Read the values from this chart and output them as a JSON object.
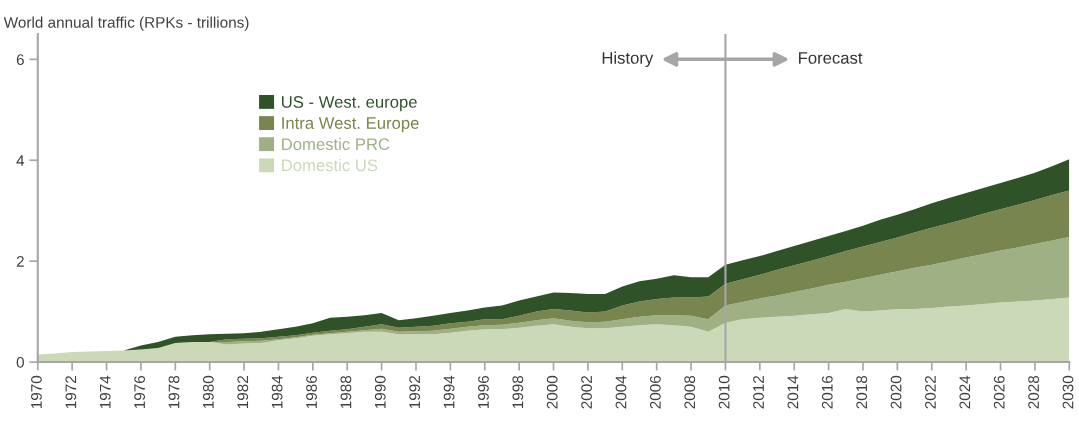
{
  "chart_data": {
    "type": "area",
    "stacked": true,
    "ylabel": "World annual traffic (RPKs - trillions)",
    "x": [
      1970,
      1971,
      1972,
      1973,
      1974,
      1975,
      1976,
      1977,
      1978,
      1979,
      1980,
      1981,
      1982,
      1983,
      1984,
      1985,
      1986,
      1987,
      1988,
      1989,
      1990,
      1991,
      1992,
      1993,
      1994,
      1995,
      1996,
      1997,
      1998,
      1999,
      2000,
      2001,
      2002,
      2003,
      2004,
      2005,
      2006,
      2007,
      2008,
      2009,
      2010,
      2011,
      2012,
      2013,
      2014,
      2015,
      2016,
      2017,
      2018,
      2019,
      2020,
      2021,
      2022,
      2023,
      2024,
      2025,
      2026,
      2027,
      2028,
      2029,
      2030
    ],
    "series": [
      {
        "name": "Domestic US",
        "color": "#cbd9b8",
        "values": [
          0.15,
          0.17,
          0.2,
          0.21,
          0.22,
          0.23,
          0.25,
          0.28,
          0.38,
          0.4,
          0.4,
          0.35,
          0.37,
          0.38,
          0.43,
          0.47,
          0.52,
          0.55,
          0.57,
          0.6,
          0.6,
          0.55,
          0.55,
          0.55,
          0.58,
          0.62,
          0.65,
          0.65,
          0.68,
          0.72,
          0.75,
          0.7,
          0.67,
          0.67,
          0.7,
          0.73,
          0.75,
          0.73,
          0.7,
          0.6,
          0.78,
          0.85,
          0.88,
          0.9,
          0.92,
          0.95,
          0.97,
          1.05,
          1.0,
          1.02,
          1.05,
          1.05,
          1.07,
          1.1,
          1.12,
          1.15,
          1.18,
          1.2,
          1.22,
          1.25,
          1.28
        ]
      },
      {
        "name": "Domestic PRC",
        "color": "#9fb084",
        "values": [
          0,
          0,
          0,
          0,
          0,
          0,
          0,
          0,
          0,
          0,
          0,
          0.05,
          0.04,
          0.04,
          0.02,
          0.02,
          0.02,
          0.02,
          0.03,
          0.03,
          0.06,
          0.05,
          0.06,
          0.07,
          0.08,
          0.08,
          0.08,
          0.09,
          0.1,
          0.11,
          0.12,
          0.12,
          0.12,
          0.13,
          0.15,
          0.17,
          0.18,
          0.2,
          0.22,
          0.25,
          0.34,
          0.34,
          0.38,
          0.42,
          0.47,
          0.51,
          0.56,
          0.54,
          0.66,
          0.71,
          0.75,
          0.82,
          0.86,
          0.9,
          0.95,
          0.99,
          1.03,
          1.07,
          1.12,
          1.16,
          1.2
        ]
      },
      {
        "name": "Intra West. Europe",
        "color": "#78854e",
        "values": [
          0,
          0,
          0,
          0,
          0,
          0,
          0,
          0,
          0,
          0,
          0,
          0.05,
          0.05,
          0.05,
          0.05,
          0.04,
          0.04,
          0.05,
          0.05,
          0.07,
          0.09,
          0.08,
          0.09,
          0.1,
          0.11,
          0.1,
          0.12,
          0.11,
          0.14,
          0.17,
          0.18,
          0.2,
          0.19,
          0.2,
          0.27,
          0.3,
          0.32,
          0.35,
          0.36,
          0.45,
          0.43,
          0.45,
          0.47,
          0.51,
          0.53,
          0.55,
          0.57,
          0.61,
          0.63,
          0.65,
          0.67,
          0.7,
          0.73,
          0.75,
          0.77,
          0.8,
          0.82,
          0.85,
          0.87,
          0.9,
          0.92
        ]
      },
      {
        "name": "US - West. europe",
        "color": "#2f5229",
        "values": [
          0,
          0,
          0,
          0,
          0,
          0,
          0.08,
          0.12,
          0.12,
          0.13,
          0.15,
          0.11,
          0.11,
          0.13,
          0.15,
          0.17,
          0.19,
          0.26,
          0.25,
          0.23,
          0.22,
          0.15,
          0.17,
          0.2,
          0.2,
          0.22,
          0.23,
          0.27,
          0.3,
          0.3,
          0.33,
          0.35,
          0.37,
          0.35,
          0.38,
          0.4,
          0.4,
          0.44,
          0.4,
          0.38,
          0.38,
          0.38,
          0.37,
          0.37,
          0.38,
          0.39,
          0.4,
          0.4,
          0.41,
          0.44,
          0.45,
          0.46,
          0.49,
          0.5,
          0.51,
          0.51,
          0.52,
          0.53,
          0.54,
          0.57,
          0.62
        ]
      }
    ],
    "xlim": [
      1970,
      2030
    ],
    "xticks": [
      1970,
      1972,
      1974,
      1976,
      1978,
      1980,
      1982,
      1984,
      1986,
      1988,
      1990,
      1992,
      1994,
      1996,
      1998,
      2000,
      2002,
      2004,
      2006,
      2008,
      2010,
      2012,
      2014,
      2016,
      2018,
      2020,
      2022,
      2024,
      2026,
      2028,
      2030
    ],
    "ylim": [
      0,
      6.5
    ],
    "yticks": [
      0,
      2,
      4,
      6
    ],
    "ref_lines": [
      {
        "axis": "x",
        "value": 2010,
        "color": "#a6a6a6"
      }
    ],
    "annotations": [
      "History",
      "Forecast"
    ],
    "legend": "top left",
    "grid": false
  }
}
